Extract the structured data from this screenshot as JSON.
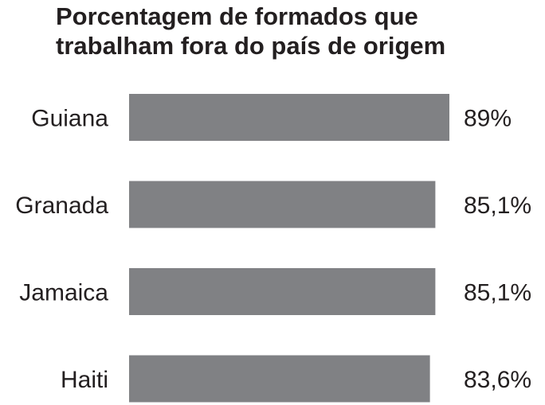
{
  "chart_data": {
    "type": "bar",
    "orientation": "horizontal",
    "title_lines": [
      "Porcentagem de formados que",
      "trabalham fora do país de origem"
    ],
    "categories": [
      "Guiana",
      "Granada",
      "Jamaica",
      "Haiti"
    ],
    "values": [
      89,
      85.1,
      85.1,
      83.6
    ],
    "value_labels": [
      "89%",
      "85,1%",
      "85,1%",
      "83,6%"
    ],
    "unit": "%",
    "bar_color": "#808184",
    "xlim": [
      0,
      89
    ],
    "grid": false,
    "legend": "none"
  }
}
